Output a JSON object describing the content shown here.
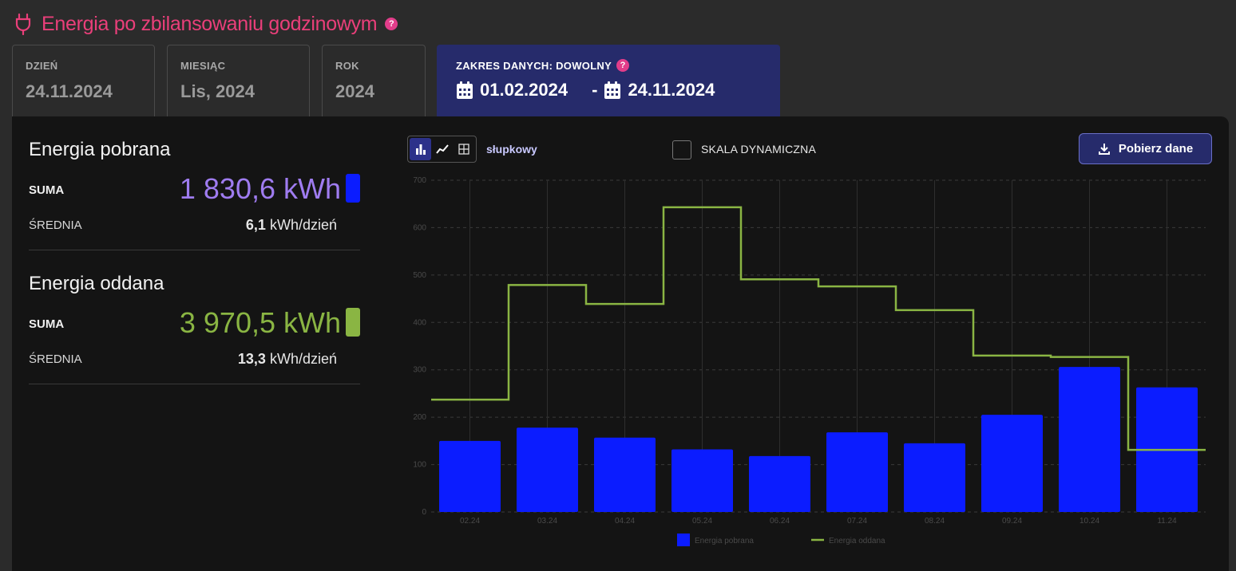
{
  "header": {
    "title": "Energia po zbilansowaniu godzinowym",
    "help": "?"
  },
  "tabs": {
    "day": {
      "label": "DZIEŃ",
      "value": "24.11.2024"
    },
    "month": {
      "label": "MIESIĄC",
      "value": "Lis, 2024"
    },
    "year": {
      "label": "ROK",
      "value": "2024"
    },
    "range": {
      "label": "ZAKRES DANYCH: DOWOLNY",
      "from": "01.02.2024",
      "separator": "-",
      "to": "24.11.2024"
    }
  },
  "stats": {
    "consumed": {
      "title": "Energia pobrana",
      "sum_label": "SUMA",
      "sum_value": "1 830,6 kWh",
      "avg_label": "ŚREDNIA",
      "avg_number": "6,1",
      "avg_unit": " kWh/dzień",
      "color": "#9f7cf0",
      "swatch": "#0b1cff"
    },
    "returned": {
      "title": "Energia oddana",
      "sum_label": "SUMA",
      "sum_value": "3 970,5 kWh",
      "avg_label": "ŚREDNIA",
      "avg_number": "13,3",
      "avg_unit": " kWh/dzień",
      "color": "#8ab543",
      "swatch": "#8ab543"
    }
  },
  "controls": {
    "chart_type_label": "słupkowy",
    "dynamic_scale_label": "SKALA DYNAMICZNA",
    "dynamic_scale_checked": false,
    "download_label": "Pobierz dane",
    "icons": [
      "bar-chart-icon",
      "line-chart-icon",
      "table-icon",
      "download-icon",
      "calendar-icon",
      "plug-icon"
    ]
  },
  "chart_data": {
    "type": "bar",
    "categories": [
      "02.24",
      "03.24",
      "04.24",
      "05.24",
      "06.24",
      "07.24",
      "08.24",
      "09.24",
      "10.24",
      "11.24"
    ],
    "ylim": [
      0,
      700
    ],
    "yticks": [
      0,
      100,
      200,
      300,
      400,
      500,
      600,
      700
    ],
    "series": [
      {
        "name": "Energia pobrana",
        "type": "bar",
        "color": "#0b1cff",
        "values": [
          150,
          178,
          157,
          132,
          118,
          168,
          145,
          205,
          306,
          263
        ]
      },
      {
        "name": "Energia oddana",
        "type": "step-line",
        "color": "#8ab543",
        "values": [
          237,
          479,
          439,
          643,
          491,
          476,
          426,
          330,
          327,
          131
        ]
      }
    ],
    "grid": true,
    "legend": "bottom"
  }
}
